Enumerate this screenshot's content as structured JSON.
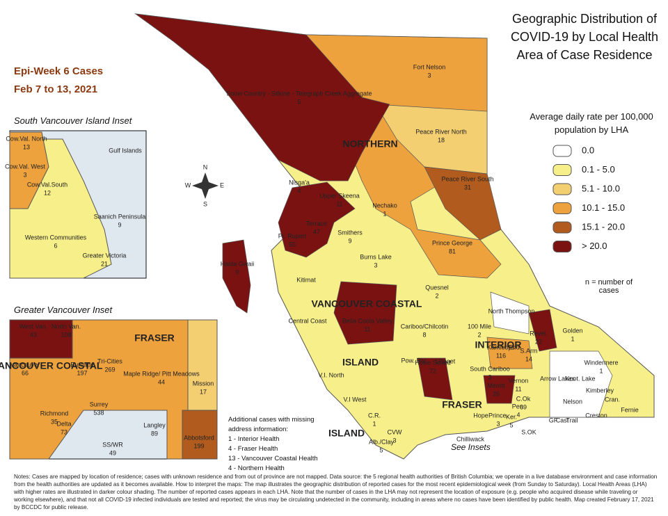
{
  "title": "Geographic Distribution of COVID-19 by Local Health Area of Case Residence",
  "subtitle": [
    "Epi-Week 6 Cases",
    "Feb 7 to 13, 2021"
  ],
  "legend": {
    "title": "Average daily rate per 100,000 population by LHA",
    "items": [
      {
        "label": "0.0",
        "color": "#ffffff"
      },
      {
        "label": "0.1 - 5.0",
        "color": "#f7ef8a"
      },
      {
        "label": "5.1 - 10.0",
        "color": "#f4cf72"
      },
      {
        "label": "10.1 - 15.0",
        "color": "#eea23d"
      },
      {
        "label": "15.1 - 20.0",
        "color": "#b15c1e"
      },
      {
        "label": "> 20.0",
        "color": "#7a1212"
      }
    ]
  },
  "n_note": "n = number of cases",
  "insets": {
    "south_island": "South Vancouver Island Inset",
    "greater_vancouver": "Greater Vancouver Inset",
    "see": "See Insets"
  },
  "health_authorities": [
    "NORTHERN",
    "INTERIOR",
    "VANCOUVER COASTAL",
    "FRASER",
    "ISLAND",
    "ISLAND",
    "VANCOUVER COASTAL",
    "FRASER"
  ],
  "compass": [
    "N",
    "S",
    "E",
    "W"
  ],
  "map_labels": [
    {
      "name": "Fort Nelson",
      "cases": 3
    },
    {
      "name": "Snow Country - Stikine - Telegraph Creek Aggregate",
      "cases": 5
    },
    {
      "name": "Peace River North",
      "cases": 18
    },
    {
      "name": "Peace River South",
      "cases": 31
    },
    {
      "name": "Nechako",
      "cases": 1
    },
    {
      "name": "Prince George",
      "cases": 81
    },
    {
      "name": "Nisga'a",
      "cases": 4
    },
    {
      "name": "Upper Skeena",
      "cases": 11
    },
    {
      "name": "Terrace",
      "cases": 47
    },
    {
      "name": "Pr. Rupert",
      "cases": 55
    },
    {
      "name": "Smithers",
      "cases": 9
    },
    {
      "name": "Burns Lake",
      "cases": 3
    },
    {
      "name": "Haida Gwaii",
      "cases": 9
    },
    {
      "name": "Kitimat"
    },
    {
      "name": "Quesnel",
      "cases": 2
    },
    {
      "name": "Bella Coola Valley",
      "cases": 11
    },
    {
      "name": "Central Coast"
    },
    {
      "name": "Cariboo/Chilcotin",
      "cases": 8
    },
    {
      "name": "100 Mile",
      "cases": 2
    },
    {
      "name": "North Thompson"
    },
    {
      "name": "Kamloops",
      "cases": 116
    },
    {
      "name": "Revel.",
      "cases": 22
    },
    {
      "name": "Golden",
      "cases": 1
    },
    {
      "name": "Windermere",
      "cases": 1
    },
    {
      "name": "S.Arm",
      "cases": 14
    },
    {
      "name": "Lillooet"
    },
    {
      "name": "Howe Sound",
      "cases": 72
    },
    {
      "name": "Merritt",
      "cases": 26
    },
    {
      "name": "Vernon",
      "cases": 11
    },
    {
      "name": "C.Ok",
      "cases": 69
    },
    {
      "name": "Arrow Lakes"
    },
    {
      "name": "Koot. Lake"
    },
    {
      "name": "Nelson"
    },
    {
      "name": "Kimberley"
    },
    {
      "name": "Cran."
    },
    {
      "name": "Fernie"
    },
    {
      "name": "Creston"
    },
    {
      "name": "S.OK"
    },
    {
      "name": "Chilliwack"
    },
    {
      "name": "V.I. North"
    },
    {
      "name": "V.I West"
    },
    {
      "name": "C.R.",
      "cases": 1
    },
    {
      "name": "Alb./Clay",
      "cases": 5
    },
    {
      "name": "Pow. Riv"
    },
    {
      "name": "South Cariboo",
      "cases": 3
    },
    {
      "name": "Hope"
    },
    {
      "name": "Prince.",
      "cases": 3
    },
    {
      "name": "Ker.",
      "cases": 5
    },
    {
      "name": "Pen.",
      "cases": 4
    },
    {
      "name": "End."
    },
    {
      "name": "Cast"
    },
    {
      "name": "GF"
    },
    {
      "name": "Trail"
    },
    {
      "name": "CVW",
      "cases": 3
    }
  ],
  "south_island_labels": [
    {
      "name": "Cow.Val. North",
      "cases": 13
    },
    {
      "name": "Gulf Islands"
    },
    {
      "name": "Cow.Val. West",
      "cases": 3
    },
    {
      "name": "Cow.Val.South",
      "cases": 12
    },
    {
      "name": "Saanich Peninsula",
      "cases": 9
    },
    {
      "name": "Western Communities",
      "cases": 6
    },
    {
      "name": "Greater Victoria",
      "cases": 21
    }
  ],
  "vancouver_labels": [
    {
      "name": "West Van.",
      "cases": 43
    },
    {
      "name": "North Van.",
      "cases": 108
    },
    {
      "name": "Tri-Cities",
      "cases": 269
    },
    {
      "name": "Maple Ridge/ Pitt Meadows",
      "cases": 44
    },
    {
      "name": "Mission",
      "cases": 17
    },
    {
      "name": "Vancouver",
      "cases": 66
    },
    {
      "name": "Burnaby",
      "cases": 197
    },
    {
      "name": "Richmond",
      "cases": 35
    },
    {
      "name": "Delta",
      "cases": 73
    },
    {
      "name": "Surrey",
      "cases": 538
    },
    {
      "name": "Langley",
      "cases": 89
    },
    {
      "name": "SS/WR",
      "cases": 49
    },
    {
      "name": "Abbotsford",
      "cases": 199
    }
  ],
  "additional_cases": {
    "title": "Additional cases with missing address information:",
    "lines": [
      "1 - Interior Health",
      "4 - Fraser Health",
      "13 - Vancouver Coastal Health",
      "4 - Northern Health"
    ]
  },
  "notes": "Notes: Cases are mapped by location of residence; cases with unknown residence and from out of province are not mapped. Data source: the 5 regional health authorities of British Columbia; we operate in a live database environment and case information from the health authorities are updated as it becomes available. How to interpret the maps: The map illustrates the geographic distribution of reported cases for the most recent epidemiological week (from Sunday to Saturday). Local Health Areas (LHA) with higher rates are illustrated in darker colour shading. The number of reported cases appears in each LHA. Note that the number of cases in the LHA may not represent the location of exposure (e.g. people who acquired disease while traveling or working elsewhere), and that not all COVID-19 infected individuals are tested and reported; the virus may be circulating undetected in the community, including in areas where no cases have been identified by public health. Map created February 17, 2021 by BCCDC for public release."
}
